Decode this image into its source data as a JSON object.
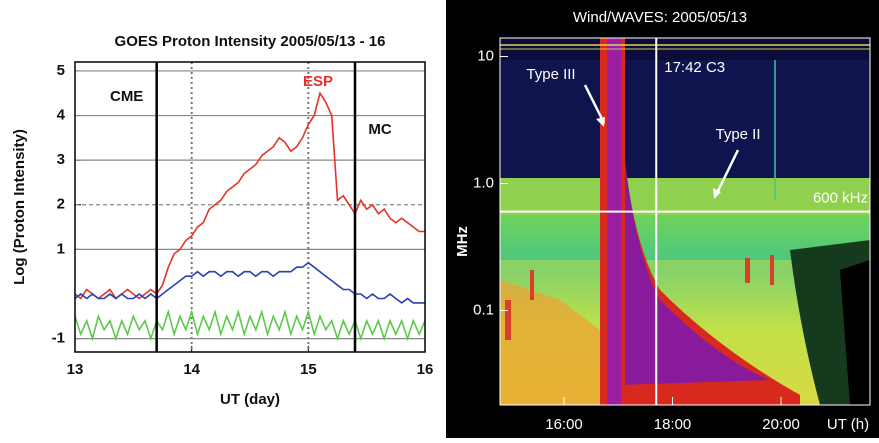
{
  "chart_data": [
    {
      "type": "line",
      "title": "GOES Proton Intensity  2005/05/13 - 16",
      "xlabel": "UT (day)",
      "ylabel": "Log (Proton Intensity)",
      "x": [
        13,
        13.05,
        13.1,
        13.15,
        13.2,
        13.25,
        13.3,
        13.35,
        13.4,
        13.45,
        13.5,
        13.55,
        13.6,
        13.65,
        13.7,
        13.75,
        13.8,
        13.85,
        13.9,
        13.95,
        14,
        14.05,
        14.1,
        14.15,
        14.2,
        14.25,
        14.3,
        14.35,
        14.4,
        14.45,
        14.5,
        14.55,
        14.6,
        14.65,
        14.7,
        14.75,
        14.8,
        14.85,
        14.9,
        14.95,
        15,
        15.05,
        15.1,
        15.15,
        15.2,
        15.25,
        15.3,
        15.35,
        15.4,
        15.45,
        15.5,
        15.55,
        15.6,
        15.65,
        15.7,
        15.75,
        15.8,
        15.85,
        15.9,
        15.95,
        16
      ],
      "series": [
        {
          "color": "#e8302a",
          "values": [
            0.0,
            -0.1,
            0.1,
            0.0,
            -0.1,
            0.0,
            0.1,
            -0.1,
            0.0,
            0.1,
            0.0,
            -0.1,
            0.0,
            0.1,
            0.0,
            0.2,
            0.6,
            0.9,
            1.0,
            1.2,
            1.3,
            1.5,
            1.6,
            1.9,
            2.0,
            2.1,
            2.3,
            2.4,
            2.5,
            2.7,
            2.8,
            2.9,
            3.1,
            3.2,
            3.3,
            3.5,
            3.4,
            3.2,
            3.3,
            3.5,
            3.8,
            4.0,
            4.5,
            4.3,
            4.0,
            2.1,
            2.2,
            2.0,
            1.8,
            2.1,
            1.9,
            2.0,
            1.8,
            1.9,
            1.7,
            1.6,
            1.7,
            1.6,
            1.5,
            1.4,
            1.4
          ]
        },
        {
          "color": "#2b3fb0",
          "values": [
            -0.1,
            0.0,
            -0.1,
            0.0,
            -0.1,
            -0.1,
            0.0,
            -0.1,
            0.0,
            -0.1,
            -0.1,
            0.0,
            -0.1,
            0.0,
            -0.1,
            0.0,
            0.1,
            0.2,
            0.3,
            0.4,
            0.4,
            0.5,
            0.4,
            0.5,
            0.5,
            0.4,
            0.5,
            0.5,
            0.4,
            0.5,
            0.5,
            0.4,
            0.5,
            0.5,
            0.4,
            0.5,
            0.5,
            0.5,
            0.6,
            0.6,
            0.7,
            0.6,
            0.5,
            0.4,
            0.3,
            0.2,
            0.1,
            0.1,
            0.0,
            0.0,
            -0.1,
            0.0,
            -0.1,
            -0.1,
            0.0,
            -0.1,
            -0.2,
            -0.1,
            -0.2,
            -0.2,
            -0.2
          ]
        },
        {
          "color": "#5cc94a",
          "values": [
            -0.5,
            -0.9,
            -0.6,
            -1.0,
            -0.5,
            -0.8,
            -0.6,
            -1.0,
            -0.6,
            -0.9,
            -0.5,
            -0.8,
            -0.6,
            -1.0,
            -0.6,
            -0.8,
            -0.4,
            -0.9,
            -0.5,
            -0.8,
            -0.4,
            -0.9,
            -0.5,
            -0.8,
            -0.4,
            -0.9,
            -0.5,
            -0.8,
            -0.4,
            -0.9,
            -0.5,
            -0.8,
            -0.4,
            -0.9,
            -0.5,
            -0.8,
            -0.4,
            -0.9,
            -0.5,
            -0.8,
            -0.4,
            -0.9,
            -0.5,
            -0.8,
            -0.6,
            -1.0,
            -0.6,
            -0.9,
            -0.6,
            -1.0,
            -0.6,
            -0.9,
            -0.6,
            -1.0,
            -0.6,
            -0.9,
            -0.6,
            -1.0,
            -0.6,
            -0.9,
            -0.6
          ]
        }
      ],
      "xlim": [
        13,
        16
      ],
      "xticks": [
        13,
        14,
        15,
        16
      ],
      "ylim": [
        -1.3,
        5.2
      ],
      "yticks": [
        5,
        4,
        3,
        2,
        1,
        -1
      ],
      "grid": true,
      "dashed_grid_at": [
        2
      ],
      "events": [
        {
          "x": 13.7,
          "label": "CME"
        },
        {
          "x": 15.4,
          "label": "MC"
        }
      ],
      "dotted_lines": [
        14,
        15
      ],
      "annotation": {
        "text": "ESP",
        "color": "#e8302a"
      }
    },
    {
      "type": "spectrogram",
      "title": "Wind/WAVES: 2005/05/13",
      "xlabel": "UT (h)",
      "ylabel": "MHz",
      "xlim": [
        14.82,
        21.64
      ],
      "xticks": [
        {
          "value": 16,
          "label": "16:00"
        },
        {
          "value": 18,
          "label": "18:00"
        },
        {
          "value": 20,
          "label": "20:00"
        }
      ],
      "ylim": [
        0.018,
        14
      ],
      "log_y": true,
      "yticks": [
        10,
        {
          "value": 1,
          "label": "1.0"
        },
        0.1
      ],
      "markers": [
        {
          "x": 17.7,
          "label": "17:42 C3"
        }
      ],
      "hlines": [
        {
          "y": 0.6,
          "label": "600 kHz"
        }
      ],
      "annotations": [
        "Type III",
        "Type II"
      ]
    }
  ]
}
